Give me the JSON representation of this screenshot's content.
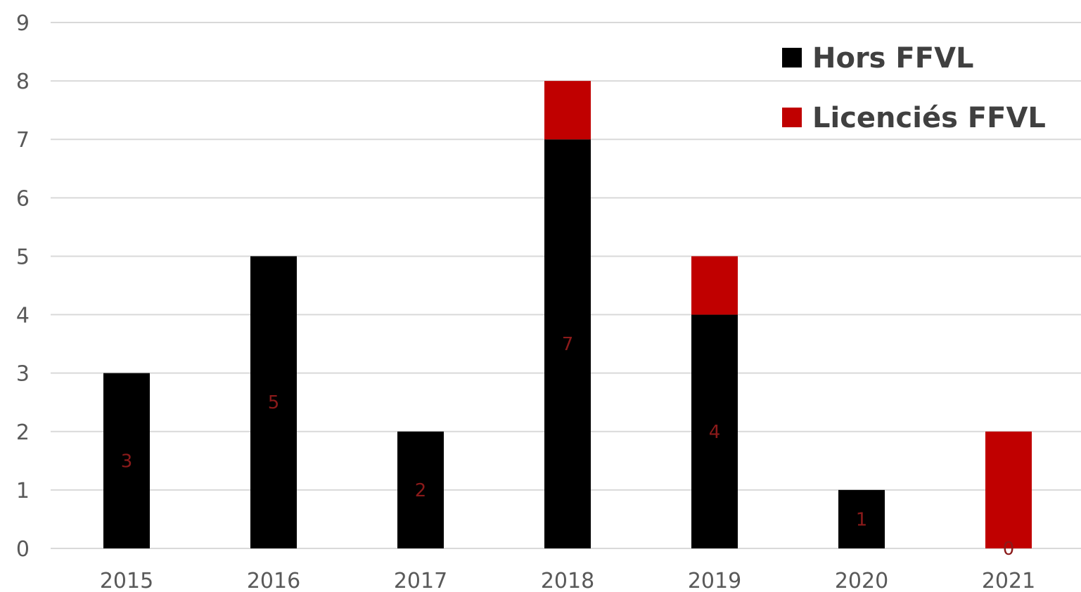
{
  "chart_data": {
    "type": "bar",
    "stacked": true,
    "categories": [
      "2015",
      "2016",
      "2017",
      "2018",
      "2019",
      "2020",
      "2021"
    ],
    "series": [
      {
        "name": "Hors FFVL",
        "values": [
          3,
          5,
          2,
          7,
          4,
          1,
          0
        ],
        "color": "#000000"
      },
      {
        "name": "Licenciés FFVL",
        "values": [
          0,
          0,
          0,
          1,
          1,
          0,
          2
        ],
        "color": "#c00000"
      }
    ],
    "data_labels": [
      "3",
      "5",
      "2",
      "7",
      "4",
      "1",
      "0"
    ],
    "y_ticks": [
      "0",
      "1",
      "2",
      "3",
      "4",
      "5",
      "6",
      "7",
      "8",
      "9"
    ],
    "ylim": [
      0,
      9
    ],
    "grid": true,
    "legend_position": "top-right",
    "title": "",
    "xlabel": "",
    "ylabel": ""
  }
}
